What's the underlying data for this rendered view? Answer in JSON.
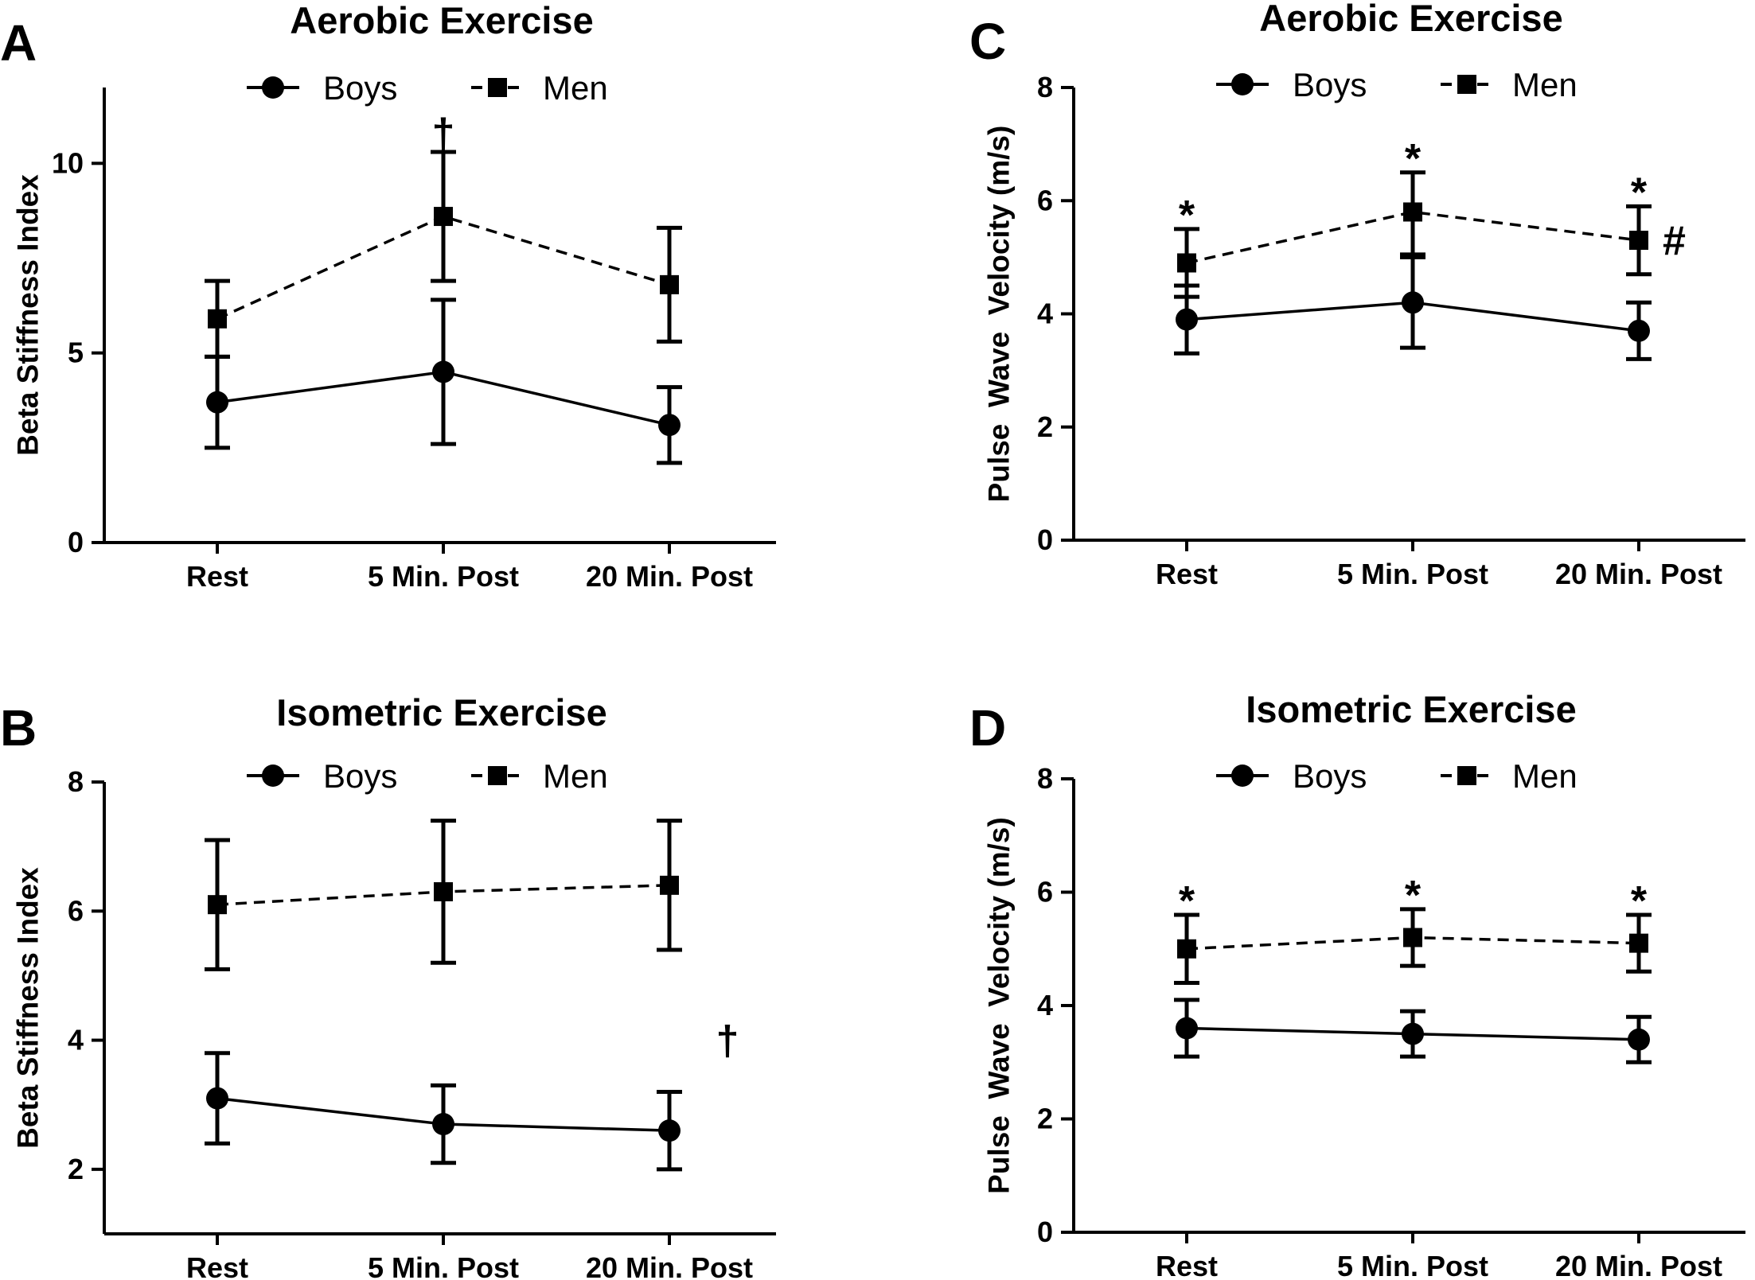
{
  "chart_data": [
    {
      "panel": "A",
      "type": "line",
      "title": "Aerobic Exercise",
      "xlabel": "",
      "ylabel": "Beta Stiffness Index",
      "categories": [
        "Rest",
        "5 Min. Post",
        "20 Min. Post"
      ],
      "ylim": [
        0,
        12
      ],
      "yticks": [
        "0",
        "5",
        "10"
      ],
      "series": [
        {
          "name": "Boys",
          "marker": "circle",
          "dash": "solid",
          "values": [
            3.7,
            4.5,
            3.1
          ],
          "err_low": [
            2.5,
            2.6,
            2.1
          ],
          "err_high": [
            4.9,
            6.4,
            4.1
          ]
        },
        {
          "name": "Men",
          "marker": "square",
          "dash": "dashed",
          "values": [
            5.9,
            8.6,
            6.8
          ],
          "err_low": [
            4.9,
            6.9,
            5.3
          ],
          "err_high": [
            6.9,
            10.3,
            8.3
          ]
        }
      ],
      "annotations": [
        {
          "text": "†",
          "category": "5 Min. Post",
          "y": 10.8
        }
      ]
    },
    {
      "panel": "B",
      "type": "line",
      "title": "Isometric Exercise",
      "xlabel": "",
      "ylabel": "Beta Stiffness Index",
      "categories": [
        "Rest",
        "5 Min. Post",
        "20 Min. Post"
      ],
      "ylim": [
        1,
        8
      ],
      "yticks": [
        "2",
        "4",
        "6",
        "8"
      ],
      "series": [
        {
          "name": "Boys",
          "marker": "circle",
          "dash": "solid",
          "values": [
            3.1,
            2.7,
            2.6
          ],
          "err_low": [
            2.4,
            2.1,
            2.0
          ],
          "err_high": [
            3.8,
            3.3,
            3.2
          ]
        },
        {
          "name": "Men",
          "marker": "square",
          "dash": "dashed",
          "values": [
            6.1,
            6.3,
            6.4
          ],
          "err_low": [
            5.1,
            5.2,
            5.4
          ],
          "err_high": [
            7.1,
            7.4,
            7.4
          ]
        }
      ],
      "annotations": [
        {
          "text": "†",
          "category": "beyond-right",
          "y": 4.0
        }
      ]
    },
    {
      "panel": "C",
      "type": "line",
      "title": "Aerobic Exercise",
      "xlabel": "",
      "ylabel": "Pulse  Wave  Velocity (m/s)",
      "categories": [
        "Rest",
        "5 Min. Post",
        "20 Min. Post"
      ],
      "ylim": [
        0,
        8
      ],
      "yticks": [
        "0",
        "2",
        "4",
        "6",
        "8"
      ],
      "series": [
        {
          "name": "Boys",
          "marker": "circle",
          "dash": "solid",
          "values": [
            3.9,
            4.2,
            3.7
          ],
          "err_low": [
            3.3,
            3.4,
            3.2
          ],
          "err_high": [
            4.5,
            5.0,
            4.2
          ]
        },
        {
          "name": "Men",
          "marker": "square",
          "dash": "dashed",
          "values": [
            4.9,
            5.8,
            5.3
          ],
          "err_low": [
            4.3,
            5.05,
            4.7
          ],
          "err_high": [
            5.5,
            6.5,
            5.9
          ]
        }
      ],
      "annotations": [
        {
          "text": "*",
          "category": "Rest",
          "y": 5.75
        },
        {
          "text": "*",
          "category": "5 Min. Post",
          "y": 6.75
        },
        {
          "text": "*",
          "category": "20 Min. Post",
          "y": 6.15
        },
        {
          "text": "#",
          "category": "20 Min. Post",
          "y": 5.3,
          "side": "right"
        }
      ]
    },
    {
      "panel": "D",
      "type": "line",
      "title": "Isometric Exercise",
      "xlabel": "",
      "ylabel": "Pulse  Wave  Velocity (m/s)",
      "categories": [
        "Rest",
        "5 Min. Post",
        "20 Min. Post"
      ],
      "ylim": [
        0,
        8
      ],
      "yticks": [
        "0",
        "2",
        "4",
        "6",
        "8"
      ],
      "series": [
        {
          "name": "Boys",
          "marker": "circle",
          "dash": "solid",
          "values": [
            3.6,
            3.5,
            3.4
          ],
          "err_low": [
            3.1,
            3.1,
            3.0
          ],
          "err_high": [
            4.1,
            3.9,
            3.8
          ]
        },
        {
          "name": "Men",
          "marker": "square",
          "dash": "dashed",
          "values": [
            5.0,
            5.2,
            5.1
          ],
          "err_low": [
            4.4,
            4.7,
            4.6
          ],
          "err_high": [
            5.6,
            5.7,
            5.6
          ]
        }
      ],
      "annotations": [
        {
          "text": "*",
          "category": "Rest",
          "y": 5.85
        },
        {
          "text": "*",
          "category": "5 Min. Post",
          "y": 5.95
        },
        {
          "text": "*",
          "category": "20 Min. Post",
          "y": 5.85
        }
      ]
    }
  ]
}
